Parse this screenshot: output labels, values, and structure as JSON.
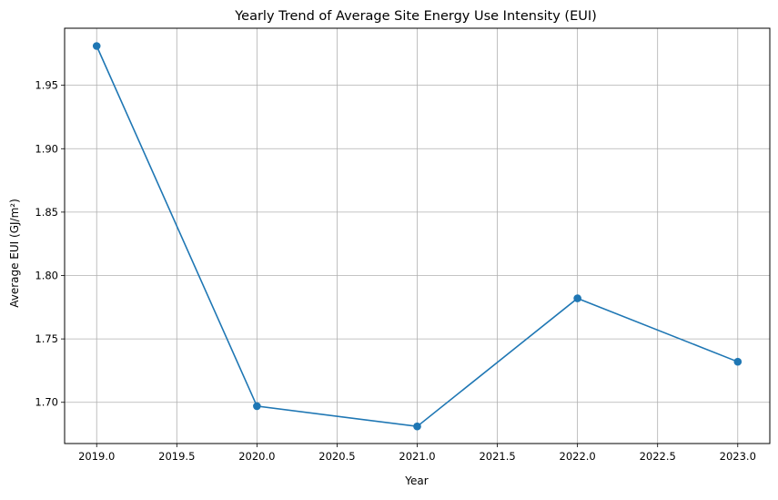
{
  "chart_data": {
    "type": "line",
    "title": "Yearly Trend of Average Site Energy Use Intensity (EUI)",
    "xlabel": "Year",
    "ylabel": "Average EUI (GJ/m²)",
    "x": [
      2019,
      2020,
      2021,
      2022,
      2023
    ],
    "series": [
      {
        "values": [
          1.981,
          1.697,
          1.681,
          1.782,
          1.732
        ],
        "color": "#1f77b4",
        "marker": "circle"
      }
    ],
    "xlim": [
      2018.8,
      2023.2
    ],
    "ylim": [
      1.6675,
      1.995
    ],
    "xticks": [
      2019.0,
      2019.5,
      2020.0,
      2020.5,
      2021.0,
      2021.5,
      2022.0,
      2022.5,
      2023.0
    ],
    "xtick_labels": [
      "2019.0",
      "2019.5",
      "2020.0",
      "2020.5",
      "2021.0",
      "2021.5",
      "2022.0",
      "2022.5",
      "2023.0"
    ],
    "yticks": [
      1.7,
      1.75,
      1.8,
      1.85,
      1.9,
      1.95
    ],
    "ytick_labels": [
      "1.70",
      "1.75",
      "1.80",
      "1.85",
      "1.90",
      "1.95"
    ],
    "grid": true,
    "grid_color": "#b0b0b0",
    "legend": "none"
  }
}
